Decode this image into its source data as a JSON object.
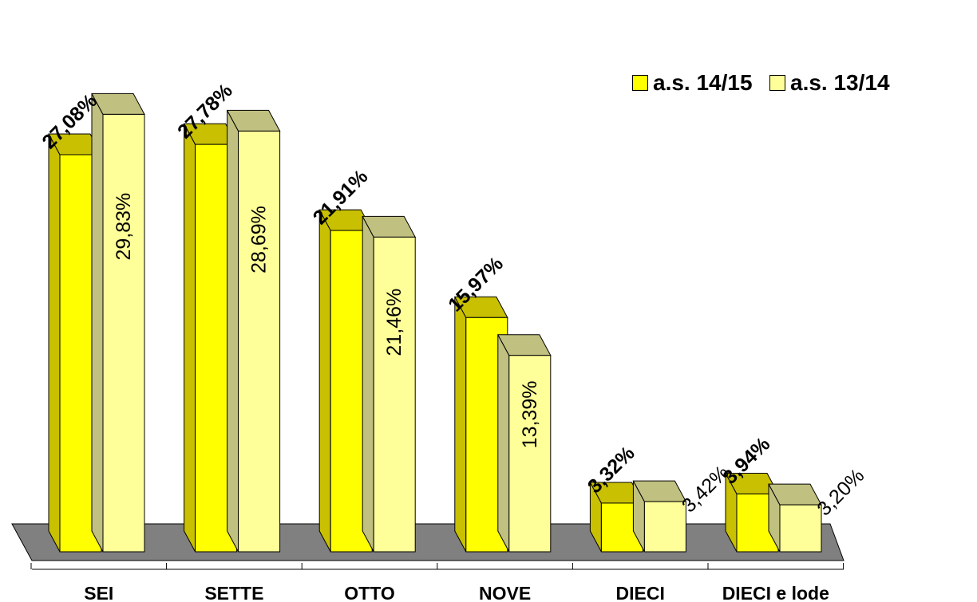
{
  "chart_data": {
    "type": "bar",
    "title": "",
    "xlabel": "",
    "ylabel": "",
    "categories": [
      "SEI",
      "SETTE",
      "OTTO",
      "NOVE",
      "DIECI",
      "DIECI e lode"
    ],
    "series": [
      {
        "name": "a.s. 14/15",
        "color": "#FFFF00",
        "values": [
          27.08,
          27.78,
          21.91,
          15.97,
          3.32,
          3.94
        ],
        "labels": [
          "27,08%",
          "27,78%",
          "21,91%",
          "15,97%",
          "3,32%",
          "3,94%"
        ]
      },
      {
        "name": "a.s. 13/14",
        "color": "#FFFF99",
        "values": [
          29.83,
          28.69,
          21.46,
          13.39,
          3.42,
          3.2
        ],
        "labels": [
          "29,83%",
          "28,69%",
          "21,46%",
          "13,39%",
          "3,42%",
          "3,20%"
        ]
      }
    ],
    "ylim": [
      0,
      30
    ],
    "grid": false,
    "legend_position": "top-right",
    "three_d": true
  },
  "colors": {
    "floor": "#808080",
    "series1_side": "#C8C000",
    "series2_top": "#C0C080",
    "series2_side": "#C0C080"
  }
}
